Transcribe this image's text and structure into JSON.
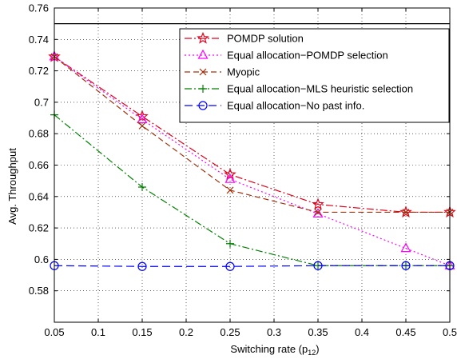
{
  "chart_data": {
    "type": "line",
    "title": "",
    "xlabel": "Switching rate (p",
    "xlabel_sub": "12",
    "xlabel_suffix": ")",
    "ylabel": "Avg. Throughput",
    "xlim": [
      0.05,
      0.5
    ],
    "ylim": [
      0.56,
      0.76
    ],
    "xticks": [
      0.05,
      0.1,
      0.15,
      0.2,
      0.25,
      0.3,
      0.35,
      0.4,
      0.45,
      0.5
    ],
    "xtick_labels": [
      "0.05",
      "0.1",
      "0.15",
      "0.2",
      "0.25",
      "0.3",
      "0.35",
      "0.4",
      "0.45",
      "0.5"
    ],
    "yticks": [
      0.58,
      0.6,
      0.62,
      0.64,
      0.66,
      0.68,
      0.7,
      0.72,
      0.74,
      0.76
    ],
    "ytick_labels": [
      "0.58",
      "0.6",
      "0.62",
      "0.64",
      "0.66",
      "0.68",
      "0.7",
      "0.72",
      "0.74",
      "0.76"
    ],
    "grid": true,
    "legend_position": "top-right",
    "reference_line": 0.75,
    "x": [
      0.05,
      0.15,
      0.25,
      0.35,
      0.45,
      0.5
    ],
    "series": [
      {
        "name": "POMDP solution",
        "values": [
          0.729,
          0.691,
          0.654,
          0.635,
          0.63,
          0.63
        ],
        "color": "#e0001a",
        "dash": "dashdot",
        "marker": "star"
      },
      {
        "name": "Equal allocation−POMDP selection",
        "values": [
          0.729,
          0.689,
          0.651,
          0.629,
          0.607,
          0.596
        ],
        "color": "#ff00ff",
        "dash": "dotted",
        "marker": "triangle"
      },
      {
        "name": "Myopic",
        "values": [
          0.729,
          0.685,
          0.644,
          0.63,
          0.63,
          0.63
        ],
        "color": "#a0300c",
        "dash": "dashed",
        "marker": "x"
      },
      {
        "name": "Equal allocation−MLS heuristic selection",
        "values": [
          0.692,
          0.646,
          0.61,
          0.596,
          0.596,
          0.596
        ],
        "color": "#008000",
        "dash": "dashdot",
        "marker": "plus"
      },
      {
        "name": "Equal allocation−No past info.",
        "values": [
          0.596,
          0.5955,
          0.5955,
          0.596,
          0.596,
          0.596
        ],
        "color": "#0000ff",
        "dash": "longdash",
        "marker": "circle"
      }
    ]
  }
}
